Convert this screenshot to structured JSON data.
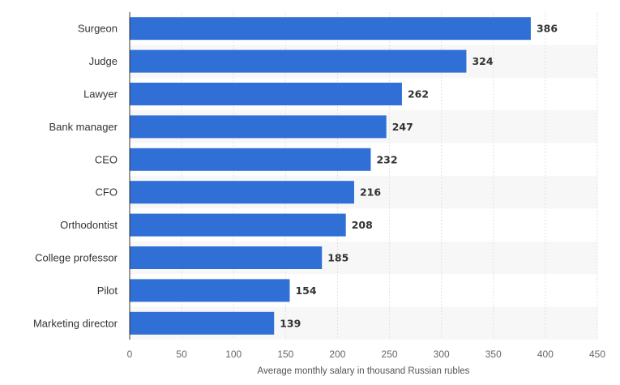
{
  "chart_data": {
    "type": "bar",
    "orientation": "horizontal",
    "title": "",
    "xlabel": "Average monthly salary in thousand Russian rubles",
    "ylabel": "",
    "categories": [
      "Surgeon",
      "Judge",
      "Lawyer",
      "Bank manager",
      "CEO",
      "CFO",
      "Orthodontist",
      "College professor",
      "Pilot",
      "Marketing director"
    ],
    "values": [
      386,
      324,
      262,
      247,
      232,
      216,
      208,
      185,
      154,
      139
    ],
    "xlim": [
      0,
      450
    ],
    "xticks": [
      0,
      50,
      100,
      150,
      200,
      250,
      300,
      350,
      400,
      450
    ],
    "grid": true,
    "legend": "none",
    "colors": {
      "bar": "#2f6fd6",
      "band": "#f7f7f7",
      "grid": "#e2e2e2",
      "axis": "#333333"
    }
  }
}
